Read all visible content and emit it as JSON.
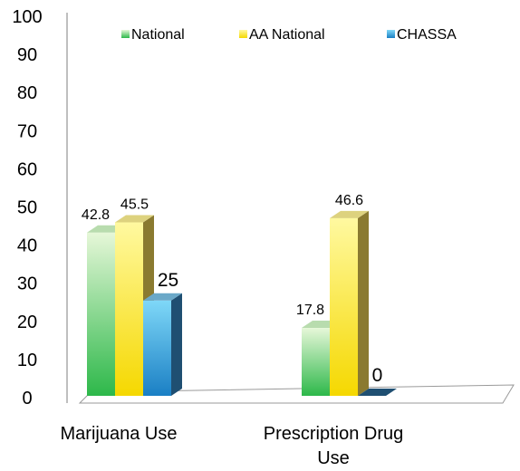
{
  "chart_data": {
    "type": "bar",
    "categories": [
      "Marijuana Use",
      "Prescription Drug Use"
    ],
    "category_label_lines": [
      [
        "Marijuana Use"
      ],
      [
        "Prescription Drug",
        "Use"
      ]
    ],
    "series": [
      {
        "name": "National",
        "values": [
          42.8,
          17.8
        ],
        "labels": [
          "42.8",
          "17.8"
        ],
        "color": "#2db84a",
        "color_light": "#e6f7d8",
        "top_color": "#b8dcae",
        "side_color": "#4a6e3a"
      },
      {
        "name": "AA National",
        "values": [
          45.5,
          46.6
        ],
        "labels": [
          "45.5",
          "46.6"
        ],
        "color": "#f5d800",
        "color_light": "#fff9a0",
        "top_color": "#ddd27e",
        "side_color": "#8a7a30"
      },
      {
        "name": "CHASSA",
        "values": [
          25,
          0
        ],
        "labels": [
          "25",
          "0"
        ],
        "color": "#1a7fc4",
        "color_light": "#7fd8f8",
        "top_color": "#6aa8c8",
        "side_color": "#1f4f72"
      }
    ],
    "ylim": [
      0,
      100
    ],
    "yticks": [
      "0",
      "10",
      "20",
      "30",
      "40",
      "50",
      "60",
      "70",
      "80",
      "90",
      "100"
    ],
    "legend_position": "top",
    "grid": false
  }
}
